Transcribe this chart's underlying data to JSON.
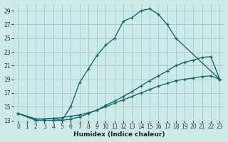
{
  "xlabel": "Humidex (Indice chaleur)",
  "xlim": [
    -0.5,
    23.5
  ],
  "ylim": [
    13,
    30
  ],
  "xticks": [
    0,
    1,
    2,
    3,
    4,
    5,
    6,
    7,
    8,
    9,
    10,
    11,
    12,
    13,
    14,
    15,
    16,
    17,
    18,
    19,
    20,
    21,
    22,
    23
  ],
  "yticks": [
    13,
    15,
    17,
    19,
    21,
    23,
    25,
    27,
    29
  ],
  "background_color": "#cceae8",
  "grid_color": "#aacfcc",
  "line_color": "#1a6b6b",
  "curve1_x": [
    0,
    2,
    3,
    4,
    5,
    6,
    7,
    8,
    9,
    10,
    11,
    12,
    13,
    14,
    15,
    16,
    17,
    18,
    23
  ],
  "curve1_y": [
    14,
    13,
    13,
    13,
    13,
    15,
    18.5,
    20.5,
    22.5,
    24,
    25,
    27.5,
    28,
    29,
    29.3,
    28.5,
    27,
    25,
    19
  ],
  "curve2_x": [
    0,
    2,
    3,
    4,
    5,
    6,
    7,
    8,
    9,
    10,
    11,
    12,
    13,
    14,
    15,
    16,
    17,
    18,
    19,
    20,
    21,
    22,
    23
  ],
  "curve2_y": [
    14,
    13.2,
    13.2,
    13.3,
    13.4,
    13.6,
    13.8,
    14.1,
    14.5,
    15.0,
    15.5,
    16.0,
    16.5,
    17.0,
    17.5,
    18.0,
    18.4,
    18.8,
    19.0,
    19.2,
    19.4,
    19.5,
    19.0
  ],
  "curve3_x": [
    0,
    2,
    3,
    4,
    5,
    6,
    7,
    8,
    9,
    10,
    11,
    12,
    13,
    14,
    15,
    16,
    17,
    18,
    19,
    20,
    21,
    22,
    23
  ],
  "curve3_y": [
    14,
    13.2,
    13.2,
    13.3,
    13.0,
    13.2,
    13.5,
    14.0,
    14.5,
    15.2,
    15.8,
    16.5,
    17.2,
    18.0,
    18.8,
    19.5,
    20.2,
    21.0,
    21.5,
    21.8,
    22.2,
    22.3,
    19.0
  ],
  "markersize": 2.5,
  "linewidth": 1.0
}
